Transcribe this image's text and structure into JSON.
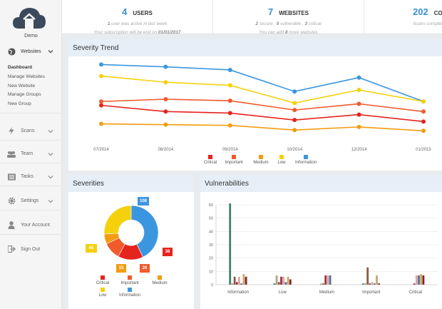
{
  "sidebar": {
    "user": "Demo",
    "websites_label": "Websites",
    "submenu": [
      "Dashboard",
      "Manage Websites",
      "New Website",
      "Manage Groups",
      "New Group"
    ],
    "items": [
      {
        "label": "Scans",
        "icon": "bolt-icon"
      },
      {
        "label": "Team",
        "icon": "team-icon"
      },
      {
        "label": "Tasks",
        "icon": "tasks-icon"
      },
      {
        "label": "Settings",
        "icon": "gear-icon"
      },
      {
        "label": "Your Account",
        "icon": "user-icon"
      },
      {
        "label": "Sign Out",
        "icon": "sign-out-icon"
      }
    ]
  },
  "stats": {
    "users": {
      "value": "4",
      "label": "USERS",
      "line1": "1 user was active in last week",
      "line2": "Your subscription will be end on 01/01/2017"
    },
    "websites": {
      "value": "7",
      "label": "WEBSITES",
      "line1": "2 secure , 5 vulnerable , 3 critical",
      "line2": "You can add 8 more websites"
    },
    "completed": {
      "value": "202",
      "label": "CO",
      "line1": "Scans complete"
    }
  },
  "panels": {
    "severity_trend": "Severity Trend",
    "severities": "Severities",
    "vulnerabilities": "Vulnerabilities"
  },
  "colors": {
    "critical": "#e5241e",
    "important": "#f05a2c",
    "medium": "#f39c12",
    "low": "#f4d10b",
    "information": "#3b96e0",
    "accent": "#3a8fd6"
  },
  "legend": [
    "Critical",
    "Important",
    "Medium",
    "Low",
    "Information"
  ],
  "chart_data": [
    {
      "type": "line",
      "title": "Severity Trend",
      "x": [
        "07/2014",
        "08/2014",
        "09/2014",
        "10/2014",
        "12/2014",
        "01/2015"
      ],
      "series": [
        {
          "name": "Information",
          "values": [
            95,
            92,
            88,
            60,
            78,
            47
          ]
        },
        {
          "name": "Low",
          "values": [
            80,
            72,
            68,
            45,
            62,
            47
          ]
        },
        {
          "name": "Important",
          "values": [
            47,
            50,
            48,
            36,
            44,
            34
          ]
        },
        {
          "name": "Critical",
          "values": [
            42,
            34,
            32,
            23,
            30,
            21
          ]
        },
        {
          "name": "Medium",
          "values": [
            18,
            17,
            16,
            10,
            14,
            9
          ]
        }
      ],
      "ylim": [
        0,
        100
      ],
      "grid": false,
      "legend": "bottom"
    },
    {
      "type": "pie",
      "title": "Severities",
      "labels": [
        "Information",
        "Critical",
        "Important",
        "Medium",
        "Low"
      ],
      "values": [
        108,
        38,
        26,
        15,
        65
      ],
      "legend": "bottom"
    },
    {
      "type": "bar",
      "title": "Vulnerabilities",
      "categories": [
        "Information",
        "Low",
        "Medium",
        "Important",
        "Critical"
      ],
      "ylim": [
        0,
        60
      ],
      "yticks": [
        0,
        10,
        20,
        30,
        40,
        50,
        60
      ],
      "series": [
        {
          "values": [
            61,
            1,
            0,
            1,
            0
          ]
        },
        {
          "values": [
            1,
            7,
            1,
            1,
            0
          ]
        },
        {
          "values": [
            6,
            2,
            1,
            13,
            0
          ]
        },
        {
          "values": [
            2,
            6,
            7,
            1,
            1
          ]
        },
        {
          "values": [
            6,
            6,
            7,
            2,
            7
          ]
        },
        {
          "values": [
            1,
            2,
            7,
            1,
            7
          ]
        },
        {
          "values": [
            8,
            6,
            0,
            7,
            8
          ]
        },
        {
          "values": [
            6,
            4,
            0,
            1,
            7
          ]
        }
      ]
    }
  ]
}
